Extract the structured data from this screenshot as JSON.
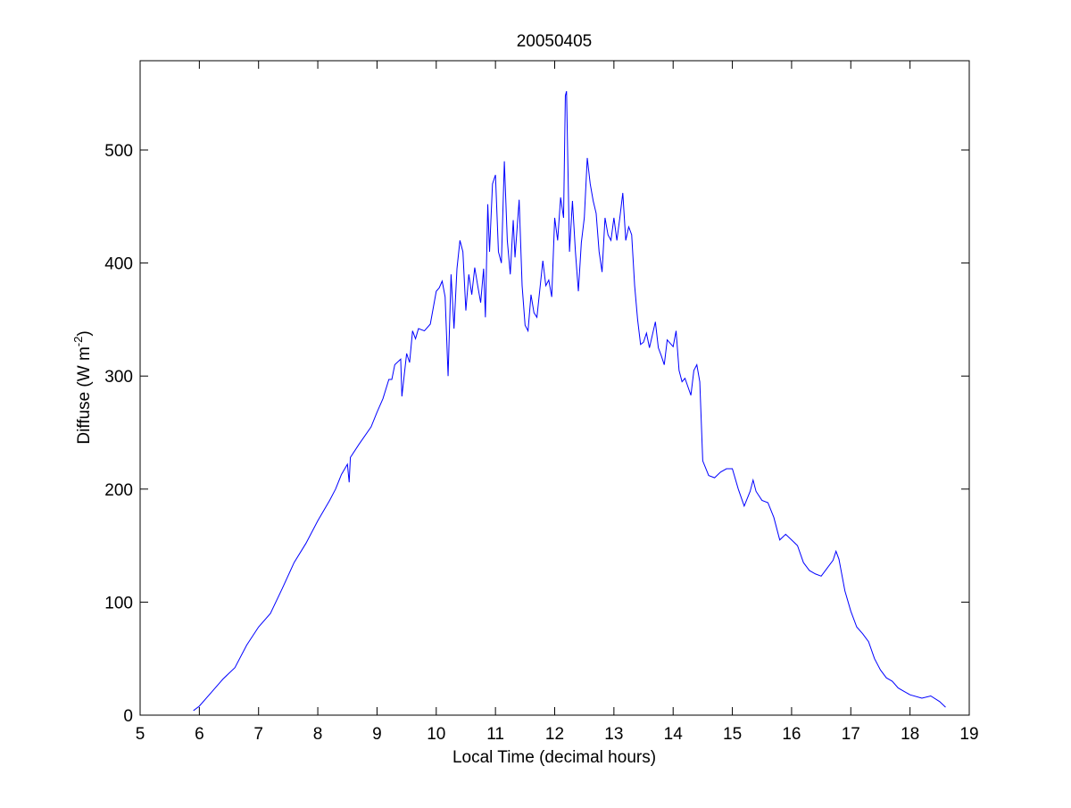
{
  "chart_data": {
    "type": "line",
    "title": "20050405",
    "xlabel": "Local Time (decimal hours)",
    "ylabel": [
      "Diffuse (W m",
      "-2",
      ")"
    ],
    "xlim": [
      5,
      19
    ],
    "xticks": [
      5,
      6,
      7,
      8,
      9,
      10,
      11,
      12,
      13,
      14,
      15,
      16,
      17,
      18,
      19
    ],
    "ylim": [
      0,
      579
    ],
    "yticks": [
      0,
      100,
      200,
      300,
      400,
      500
    ],
    "grid": false,
    "series": [
      {
        "color": "#0000ff",
        "x": [
          5.9,
          6.0,
          6.2,
          6.4,
          6.6,
          6.8,
          7.0,
          7.2,
          7.4,
          7.6,
          7.8,
          8.0,
          8.2,
          8.3,
          8.4,
          8.5,
          8.53,
          8.55,
          8.7,
          8.9,
          9.0,
          9.1,
          9.2,
          9.25,
          9.3,
          9.4,
          9.42,
          9.5,
          9.55,
          9.6,
          9.65,
          9.7,
          9.8,
          9.9,
          10.0,
          10.05,
          10.1,
          10.15,
          10.2,
          10.25,
          10.3,
          10.35,
          10.4,
          10.45,
          10.5,
          10.55,
          10.6,
          10.65,
          10.7,
          10.75,
          10.8,
          10.83,
          10.87,
          10.9,
          10.95,
          11.0,
          11.05,
          11.1,
          11.15,
          11.2,
          11.25,
          11.3,
          11.33,
          11.4,
          11.45,
          11.5,
          11.55,
          11.6,
          11.65,
          11.7,
          11.8,
          11.85,
          11.9,
          11.95,
          12.0,
          12.05,
          12.1,
          12.15,
          12.18,
          12.2,
          12.25,
          12.3,
          12.35,
          12.4,
          12.45,
          12.5,
          12.55,
          12.6,
          12.65,
          12.7,
          12.75,
          12.8,
          12.85,
          12.9,
          12.95,
          13.0,
          13.05,
          13.1,
          13.15,
          13.2,
          13.25,
          13.3,
          13.35,
          13.4,
          13.45,
          13.5,
          13.55,
          13.6,
          13.7,
          13.75,
          13.8,
          13.85,
          13.9,
          14.0,
          14.05,
          14.1,
          14.15,
          14.2,
          14.3,
          14.35,
          14.4,
          14.45,
          14.5,
          14.6,
          14.7,
          14.8,
          14.9,
          15.0,
          15.1,
          15.2,
          15.3,
          15.35,
          15.4,
          15.5,
          15.6,
          15.7,
          15.8,
          15.9,
          16.0,
          16.1,
          16.2,
          16.3,
          16.4,
          16.5,
          16.6,
          16.7,
          16.75,
          16.8,
          16.9,
          17.0,
          17.1,
          17.2,
          17.3,
          17.4,
          17.5,
          17.6,
          17.7,
          17.8,
          17.9,
          18.0,
          18.2,
          18.35,
          18.5,
          18.6
        ],
        "values": [
          4,
          8,
          20,
          32,
          42,
          62,
          78,
          90,
          112,
          135,
          152,
          172,
          190,
          200,
          213,
          222,
          206,
          228,
          240,
          255,
          268,
          280,
          297,
          297,
          310,
          315,
          282,
          320,
          312,
          340,
          333,
          342,
          340,
          346,
          375,
          378,
          384,
          370,
          300,
          390,
          342,
          395,
          420,
          410,
          358,
          390,
          372,
          396,
          380,
          365,
          395,
          352,
          452,
          410,
          470,
          478,
          410,
          400,
          490,
          420,
          390,
          438,
          405,
          456,
          380,
          345,
          340,
          372,
          356,
          352,
          402,
          380,
          385,
          370,
          440,
          420,
          458,
          440,
          548,
          552,
          410,
          455,
          410,
          375,
          418,
          440,
          493,
          470,
          455,
          444,
          410,
          392,
          440,
          425,
          420,
          440,
          420,
          440,
          462,
          420,
          432,
          425,
          380,
          350,
          328,
          330,
          338,
          325,
          348,
          325,
          318,
          310,
          332,
          326,
          340,
          305,
          295,
          298,
          283,
          305,
          310,
          295,
          225,
          212,
          210,
          215,
          218,
          218,
          200,
          185,
          198,
          208,
          198,
          190,
          188,
          175,
          155,
          160,
          155,
          150,
          135,
          128,
          125,
          123,
          130,
          137,
          145,
          138,
          110,
          92,
          78,
          72,
          65,
          50,
          40,
          33,
          30,
          24,
          21,
          18,
          15,
          17,
          12,
          7
        ]
      }
    ]
  }
}
